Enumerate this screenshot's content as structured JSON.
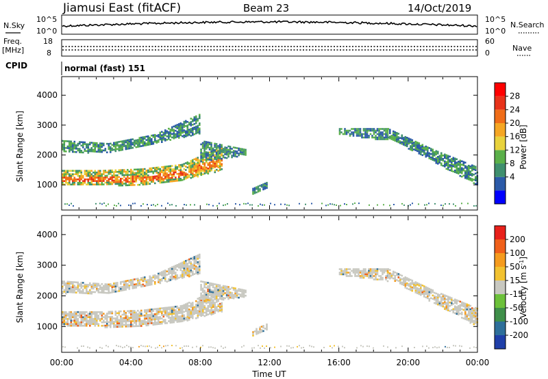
{
  "header": {
    "station": "Jiamusi East (fitACF)",
    "beam": "Beam 23",
    "date": "14/Oct/2019"
  },
  "noise_panel": {
    "left_label": "N.Sky",
    "right_label": "N.Search",
    "left_ticks": [
      "10^5",
      "10^0"
    ],
    "right_ticks": [
      "10^5",
      "10^0"
    ]
  },
  "freq_panel": {
    "left_label_line1": "Freq.",
    "left_label_line2": "[MHz]",
    "left_ticks": [
      "18",
      "8"
    ],
    "right_label": "Nave",
    "right_ticks": [
      "60",
      "0"
    ]
  },
  "cpid_panel": {
    "label": "CPID",
    "mode": "normal (fast) 151"
  },
  "power_panel": {
    "ylabel": "Slant Range [km]",
    "yticks": [
      "4000",
      "3000",
      "2000",
      "1000"
    ],
    "colorbar_title": "Power [dB]",
    "colorbar_ticks": [
      "28",
      "24",
      "20",
      "16",
      "12",
      "8",
      "4"
    ],
    "colors": [
      "#0000ff",
      "#2b5aa8",
      "#3f8f6e",
      "#5bb04a",
      "#e8d23c",
      "#f5a623",
      "#f06d18",
      "#e8321a",
      "#ff0000"
    ]
  },
  "velocity_panel": {
    "ylabel": "Slant Range [km]",
    "yticks": [
      "4000",
      "3000",
      "2000",
      "1000"
    ],
    "colorbar_title_main": "Velocity [m s",
    "colorbar_title_sup": "-1",
    "colorbar_title_end": "]",
    "colorbar_ticks": [
      "200",
      "100",
      "50",
      "15",
      "-15",
      "-50",
      "-100",
      "-200"
    ],
    "colors": [
      "#1f3fa8",
      "#2e6f9a",
      "#3f8f4a",
      "#6cc13a",
      "#c8c8c0",
      "#f2c230",
      "#f59b1e",
      "#f0601a",
      "#e8201a"
    ]
  },
  "xaxis": {
    "xlabel": "Time UT",
    "ticks": [
      "00:00",
      "04:00",
      "08:00",
      "12:00",
      "16:00",
      "20:00",
      "00:00"
    ]
  },
  "chart_data": [
    {
      "type": "heatmap",
      "title": "Power [dB]",
      "xlabel": "Time UT",
      "ylabel": "Slant Range [km]",
      "ylim": [
        180,
        4600
      ],
      "xlim_hours": [
        0,
        24
      ],
      "color_range": [
        0,
        30
      ],
      "bands": [
        {
          "start_h": 0.0,
          "end_h": 9.2,
          "range_lo_km": [
            1000,
            1000,
            1000,
            1180,
            1500
          ],
          "range_hi_km": [
            1500,
            1500,
            1550,
            1700,
            2300
          ],
          "value_db": 20
        },
        {
          "start_h": 0.0,
          "end_h": 8.0,
          "range_lo_km": [
            2100,
            2100,
            2400,
            2750
          ],
          "range_hi_km": [
            2500,
            2400,
            2700,
            3400
          ],
          "value_db": 8
        },
        {
          "start_h": 8.0,
          "end_h": 10.6,
          "range_lo_km": [
            1800,
            2000
          ],
          "range_hi_km": [
            2500,
            2200
          ],
          "value_db": 10
        },
        {
          "start_h": 11.0,
          "end_h": 11.8,
          "range_lo_km": [
            700,
            900
          ],
          "range_hi_km": [
            900,
            1100
          ],
          "value_db": 8
        },
        {
          "start_h": 16.0,
          "end_h": 18.8,
          "range_lo_km": [
            2700,
            2500
          ],
          "range_hi_km": [
            2900,
            2900
          ],
          "value_db": 10
        },
        {
          "start_h": 18.8,
          "end_h": 24.0,
          "range_lo_km": [
            2600,
            1800,
            1000
          ],
          "range_hi_km": [
            2900,
            2200,
            1600
          ],
          "value_db": 12
        }
      ]
    },
    {
      "type": "heatmap",
      "title": "Velocity [m s-1]",
      "xlabel": "Time UT",
      "ylabel": "Slant Range [km]",
      "ylim": [
        180,
        4600
      ],
      "xlim_hours": [
        0,
        24
      ],
      "color_range": [
        -250,
        250
      ],
      "bands": [
        {
          "start_h": 0.0,
          "end_h": 9.2,
          "range_lo_km": [
            1000,
            1000,
            1000,
            1180,
            1500
          ],
          "range_hi_km": [
            1500,
            1500,
            1550,
            1700,
            2300
          ],
          "value_ms": 0
        },
        {
          "start_h": 0.0,
          "end_h": 8.0,
          "range_lo_km": [
            2100,
            2100,
            2400,
            2750
          ],
          "range_hi_km": [
            2500,
            2400,
            2700,
            3400
          ],
          "value_ms": -20
        },
        {
          "start_h": 8.0,
          "end_h": 10.6,
          "range_lo_km": [
            1800,
            2000
          ],
          "range_hi_km": [
            2500,
            2200
          ],
          "value_ms": 0
        },
        {
          "start_h": 11.0,
          "end_h": 11.8,
          "range_lo_km": [
            700,
            900
          ],
          "range_hi_km": [
            900,
            1100
          ],
          "value_ms": 0
        },
        {
          "start_h": 16.0,
          "end_h": 18.8,
          "range_lo_km": [
            2700,
            2500
          ],
          "range_hi_km": [
            2900,
            2900
          ],
          "value_ms": 0
        },
        {
          "start_h": 18.8,
          "end_h": 24.0,
          "range_lo_km": [
            2600,
            1800,
            1000
          ],
          "range_hi_km": [
            2900,
            2200,
            1600
          ],
          "value_ms": 0
        }
      ]
    }
  ]
}
